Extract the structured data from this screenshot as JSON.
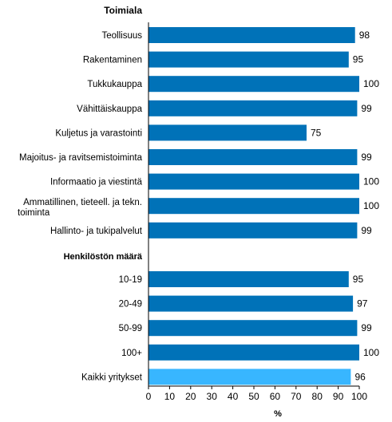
{
  "chart_data": {
    "type": "bar",
    "orientation": "horizontal",
    "xlabel": "%",
    "xlim": [
      0,
      100
    ],
    "xticks": [
      0,
      10,
      20,
      30,
      40,
      50,
      60,
      70,
      80,
      90,
      100
    ],
    "grid": false,
    "colors": {
      "bar": "#0072b8",
      "highlight": "#38b6ff"
    },
    "groups": [
      {
        "heading": "Toimiala",
        "rows": [
          {
            "label": [
              "Teollisuus"
            ],
            "value": 98
          },
          {
            "label": [
              "Rakentaminen"
            ],
            "value": 95
          },
          {
            "label": [
              "Tukkukauppa"
            ],
            "value": 100
          },
          {
            "label": [
              "Vähittäiskauppa"
            ],
            "value": 99
          },
          {
            "label": [
              "Kuljetus ja varastointi"
            ],
            "value": 75
          },
          {
            "label": [
              "Majoitus- ja ravitsemistoiminta"
            ],
            "value": 99
          },
          {
            "label": [
              "Informaatio ja viestintä"
            ],
            "value": 100
          },
          {
            "label": [
              "Ammatillinen, tieteell. ja tekn.",
              "toiminta"
            ],
            "value": 100
          },
          {
            "label": [
              "Hallinto- ja tukipalvelut"
            ],
            "value": 99
          }
        ]
      },
      {
        "heading": "Henkilöstön määrä",
        "rows": [
          {
            "label": [
              "10-19"
            ],
            "value": 95
          },
          {
            "label": [
              "20-49"
            ],
            "value": 97
          },
          {
            "label": [
              "50-99"
            ],
            "value": 99
          },
          {
            "label": [
              "100+"
            ],
            "value": 100
          },
          {
            "label": [
              "Kaikki yritykset"
            ],
            "value": 96,
            "highlight": true
          }
        ]
      }
    ]
  }
}
